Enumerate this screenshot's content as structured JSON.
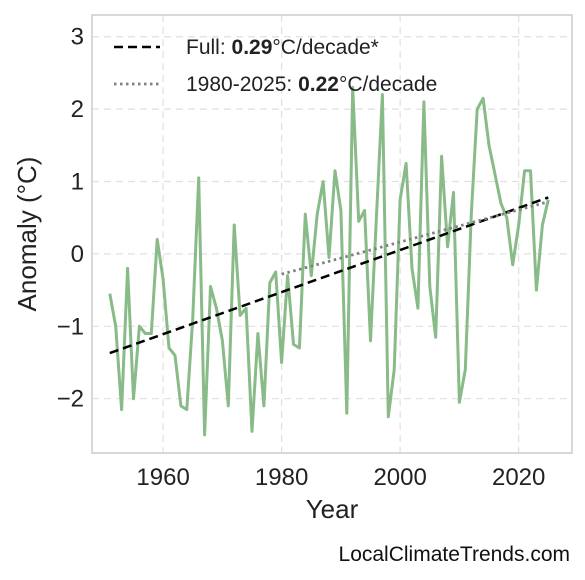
{
  "chart_data": {
    "type": "line",
    "xlabel": "Year",
    "ylabel": "Anomaly (°C)",
    "xlim": [
      1948,
      2029
    ],
    "ylim": [
      -2.75,
      3.3
    ],
    "xticks": [
      1960,
      1980,
      2000,
      2020
    ],
    "yticks": [
      -2,
      -1,
      0,
      1,
      2,
      3
    ],
    "ytick_labels": [
      "−2",
      "−1",
      "0",
      "1",
      "2",
      "3"
    ],
    "grid": true,
    "legend_position": "top-left",
    "colors": {
      "series": "#88bb88",
      "full_trend": "#000000",
      "recent_trend": "#808080"
    },
    "series": [
      {
        "x": [
          1951,
          1952,
          1953,
          1954,
          1955,
          1956,
          1957,
          1958,
          1959,
          1960,
          1961,
          1962,
          1963,
          1964,
          1965,
          1966,
          1967,
          1968,
          1969,
          1970,
          1971,
          1972,
          1973,
          1974,
          1975,
          1976,
          1977,
          1978,
          1979,
          1980,
          1981,
          1982,
          1983,
          1984,
          1985,
          1986,
          1987,
          1988,
          1989,
          1990,
          1991,
          1992,
          1993,
          1994,
          1995,
          1996,
          1997,
          1998,
          1999,
          2000,
          2001,
          2002,
          2003,
          2004,
          2005,
          2006,
          2007,
          2008,
          2009,
          2010,
          2011,
          2012,
          2013,
          2014,
          2015,
          2016,
          2017,
          2018,
          2019,
          2020,
          2021,
          2022,
          2023,
          2024,
          2025
        ],
        "values": [
          -0.55,
          -1.0,
          -2.15,
          -0.2,
          -2.0,
          -1.0,
          -1.1,
          -1.1,
          0.2,
          -0.35,
          -1.3,
          -1.4,
          -2.1,
          -2.15,
          -0.9,
          1.05,
          -2.5,
          -0.45,
          -0.75,
          -1.2,
          -2.1,
          0.4,
          -0.85,
          -0.75,
          -2.45,
          -1.1,
          -2.1,
          -0.4,
          -0.25,
          -1.5,
          -0.3,
          -1.25,
          -1.3,
          0.55,
          -0.3,
          0.55,
          1.0,
          -0.05,
          1.15,
          0.6,
          -2.2,
          2.3,
          0.45,
          0.6,
          -1.2,
          0.5,
          2.2,
          -2.25,
          -1.6,
          0.75,
          1.25,
          -0.2,
          -0.75,
          2.1,
          -0.45,
          -1.15,
          1.35,
          0.1,
          0.85,
          -2.05,
          -1.6,
          0.55,
          2.0,
          2.15,
          1.5,
          1.1,
          0.7,
          0.5,
          -0.15,
          0.4,
          1.15,
          1.15,
          -0.5,
          0.4,
          0.75
        ]
      },
      {
        "kind": "trend",
        "style": "dashed",
        "x": [
          1951,
          2025
        ],
        "values": [
          -1.37,
          0.78
        ]
      },
      {
        "kind": "trend",
        "style": "dotted",
        "x": [
          1980,
          2025
        ],
        "values": [
          -0.28,
          0.72
        ]
      }
    ],
    "legend": [
      {
        "prefix": "Full: ",
        "bold": "0.29",
        "suffix": "°C/decade*",
        "style": "dashed"
      },
      {
        "prefix": "1980-2025: ",
        "bold": "0.22",
        "suffix": "°C/decade",
        "style": "dotted"
      }
    ]
  },
  "footer": {
    "credit": "LocalClimateTrends.com"
  }
}
